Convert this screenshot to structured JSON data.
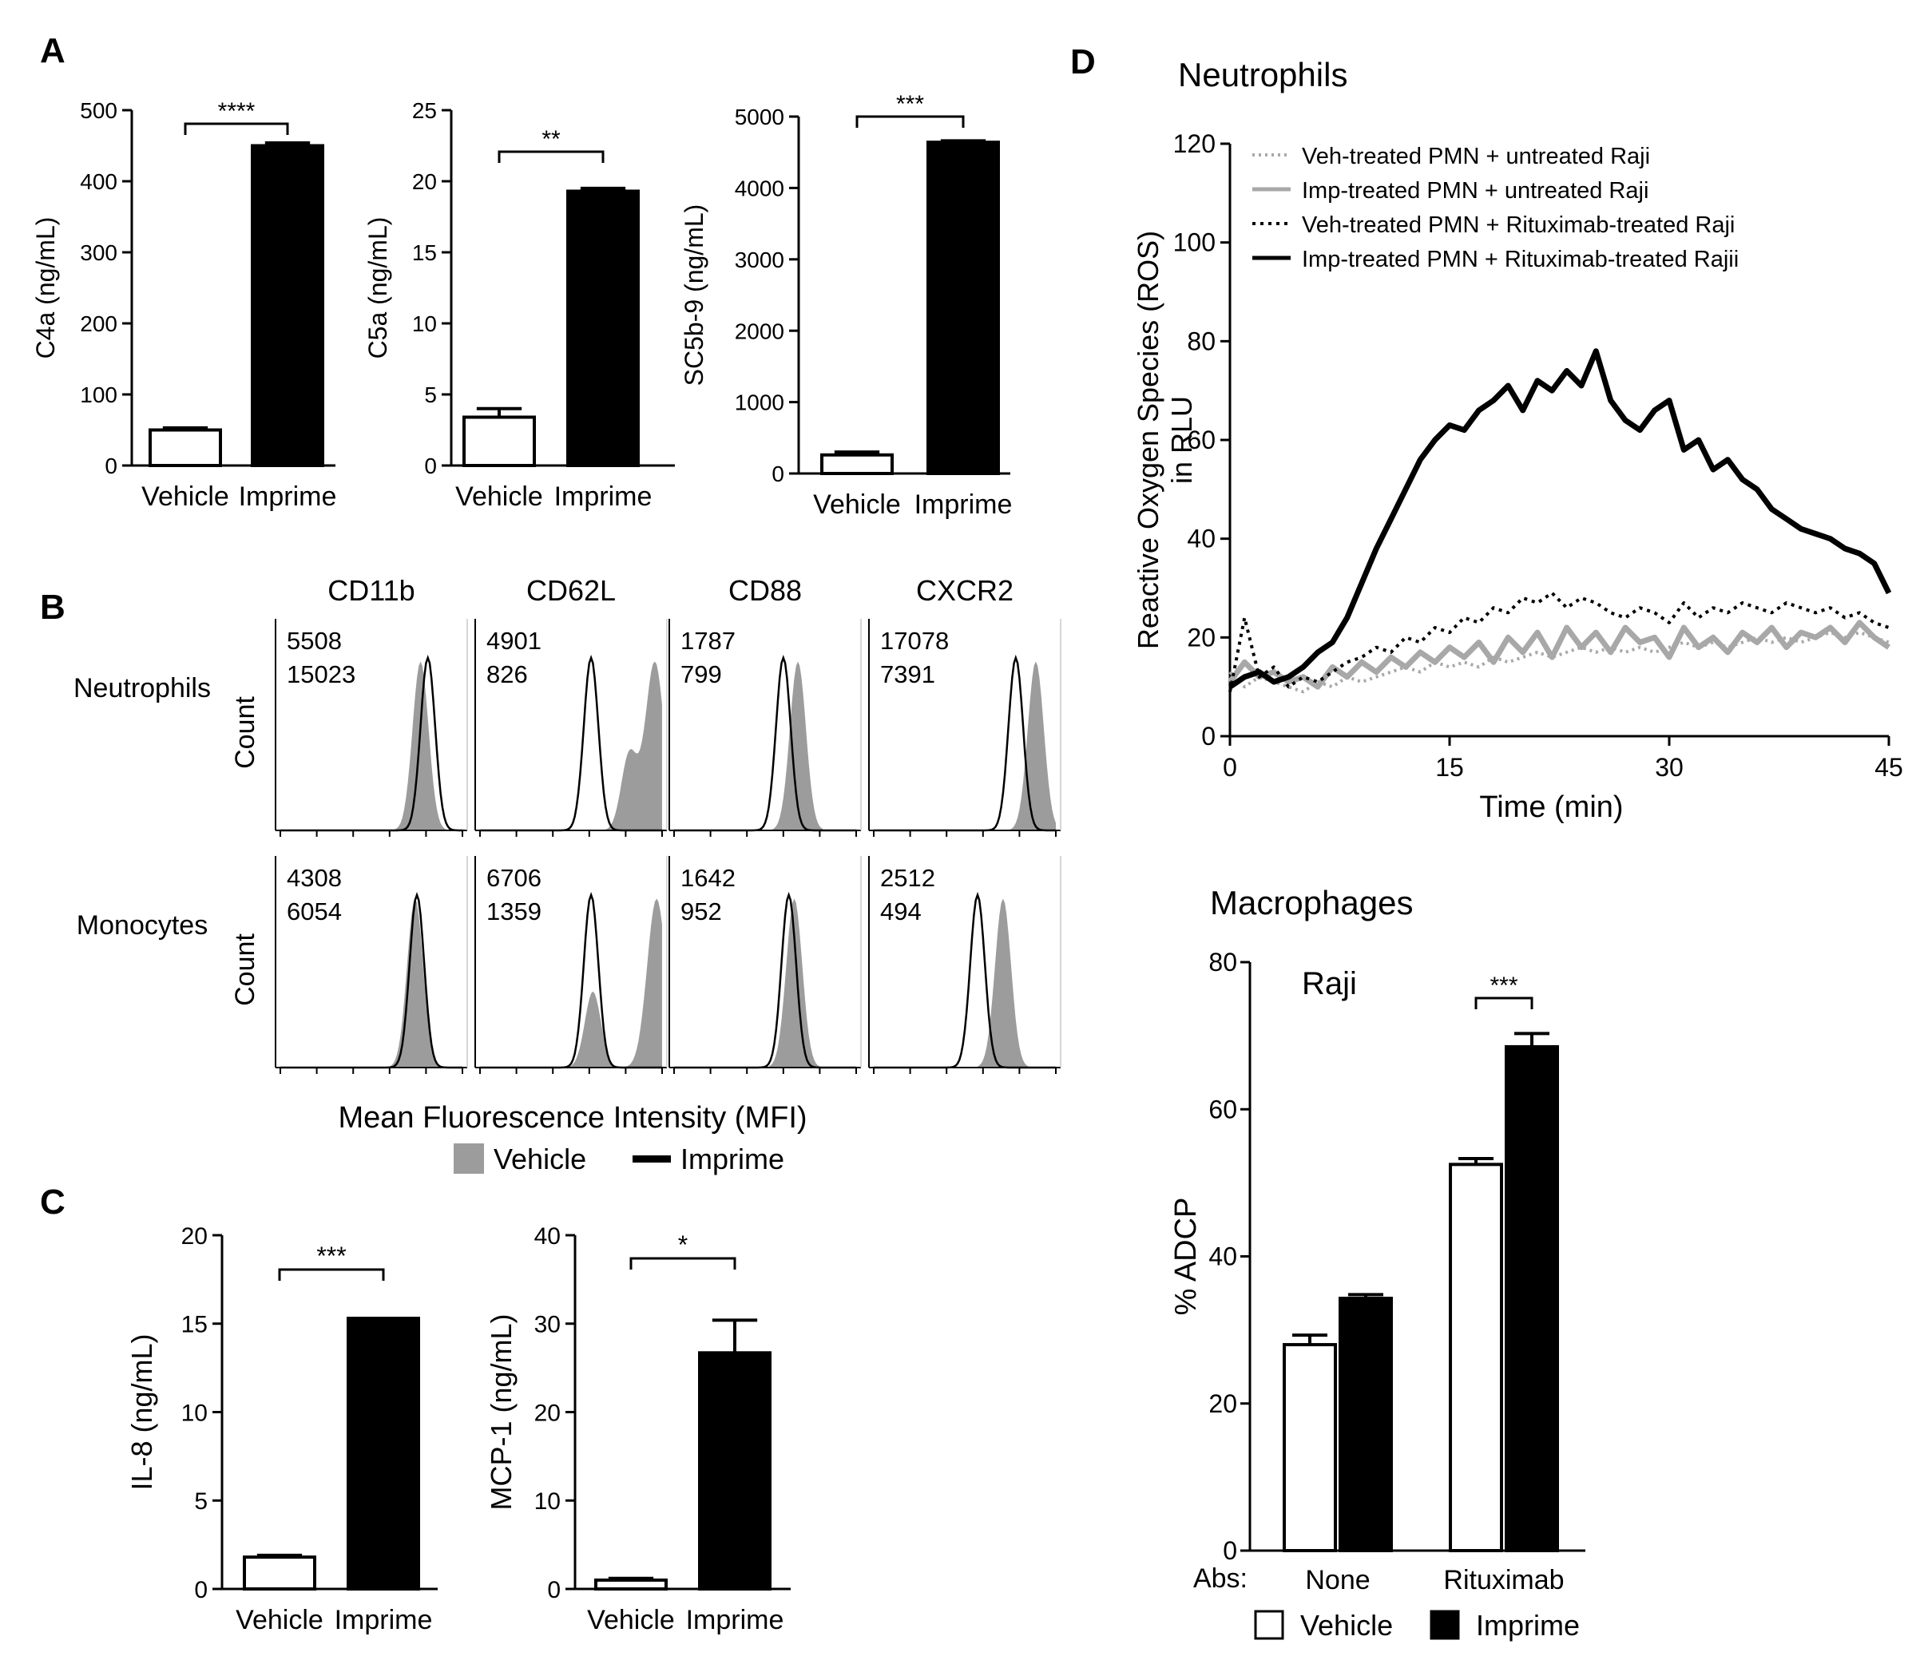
{
  "figure": {
    "panel_labels": {
      "A": "A",
      "B": "B",
      "C": "C",
      "D": "D"
    }
  },
  "colors": {
    "vehicle": "#ffffff",
    "imprime": "#000000",
    "vehicle_fill": "#9c9c9c",
    "vehicle_mfi_text": "#8c8c8c",
    "grey_line": "#a8a8a8"
  },
  "chart_data": [
    {
      "id": "c4a",
      "type": "bar",
      "panel": "A",
      "categories": [
        "Vehicle",
        "Imprime"
      ],
      "values": [
        50,
        450
      ],
      "errors": [
        3,
        4
      ],
      "ylabel": "C4a (ng/mL)",
      "ylim": [
        0,
        500
      ],
      "yticks": [
        0,
        100,
        200,
        300,
        400,
        500
      ],
      "significance": "****"
    },
    {
      "id": "c5a",
      "type": "bar",
      "panel": "A",
      "categories": [
        "Vehicle",
        "Imprime"
      ],
      "values": [
        3.4,
        19.3
      ],
      "errors": [
        0.6,
        0.2
      ],
      "ylabel": "C5a (ng/mL)",
      "ylim": [
        0,
        25
      ],
      "yticks": [
        0,
        5,
        10,
        15,
        20,
        25
      ],
      "significance": "**"
    },
    {
      "id": "sc5b9",
      "type": "bar",
      "panel": "A",
      "categories": [
        "Vehicle",
        "Imprime"
      ],
      "values": [
        260,
        4640
      ],
      "errors": [
        40,
        20
      ],
      "ylabel": "SC5b-9 (ng/mL)",
      "ylim": [
        0,
        5000
      ],
      "yticks": [
        0,
        1000,
        2000,
        3000,
        4000,
        5000
      ],
      "significance": "***"
    },
    {
      "id": "flow",
      "type": "histogram-grid",
      "panel": "B",
      "columns": [
        "CD11b",
        "CD62L",
        "CD88",
        "CXCR2"
      ],
      "rows": [
        "Neutrophils",
        "Monocytes"
      ],
      "ylabel": "Count",
      "xlabel": "Mean Fluorescence Intensity (MFI)",
      "legend": [
        "Vehicle",
        "Imprime"
      ],
      "mfi": [
        [
          {
            "vehicle": "5508",
            "imprime": "15023"
          },
          {
            "vehicle": "4901",
            "imprime": "826"
          },
          {
            "vehicle": "1787",
            "imprime": "799"
          },
          {
            "vehicle": "17078",
            "imprime": "7391"
          }
        ],
        [
          {
            "vehicle": "4308",
            "imprime": "6054"
          },
          {
            "vehicle": "6706",
            "imprime": "1359"
          },
          {
            "vehicle": "1642",
            "imprime": "952"
          },
          {
            "vehicle": "2512",
            "imprime": "494"
          }
        ]
      ],
      "peaks_log10": [
        [
          {
            "veh": [
              3.85
            ],
            "imp": 4.05
          },
          {
            "veh": [
              4.1,
              4.8
            ],
            "imp": 3.05
          },
          {
            "veh": [
              3.4
            ],
            "imp": 3.0
          },
          {
            "veh": [
              4.45
            ],
            "imp": 3.9
          }
        ],
        [
          {
            "veh": [
              3.7
            ],
            "imp": 3.75
          },
          {
            "veh": [
              3.1,
              4.85
            ],
            "imp": 3.05
          },
          {
            "veh": [
              3.3
            ],
            "imp": 3.15
          },
          {
            "veh": [
              3.55
            ],
            "imp": 2.85
          }
        ]
      ],
      "x_decades": [
        0,
        1,
        2,
        3,
        4,
        5
      ]
    },
    {
      "id": "il8",
      "type": "bar",
      "panel": "C",
      "categories": [
        "Vehicle",
        "Imprime"
      ],
      "values": [
        1.8,
        15.3
      ],
      "errors": [
        0.1,
        0.0
      ],
      "ylabel": "IL-8 (ng/mL)",
      "ylim": [
        0,
        20
      ],
      "yticks": [
        0,
        5,
        10,
        15,
        20
      ],
      "significance": "***"
    },
    {
      "id": "mcp1",
      "type": "bar",
      "panel": "C",
      "categories": [
        "Vehicle",
        "Imprime"
      ],
      "values": [
        1.0,
        26.7
      ],
      "errors": [
        0.2,
        3.7
      ],
      "ylabel": "MCP-1 (ng/mL)",
      "ylim": [
        0,
        40
      ],
      "yticks": [
        0,
        10,
        20,
        30,
        40
      ],
      "significance": "*"
    },
    {
      "id": "ros",
      "type": "line",
      "panel": "D",
      "title": "Neutrophils",
      "ylabel_line1": "Reactive Oxygen Species (ROS)",
      "ylabel_line2": "in RLU",
      "xlabel": "Time (min)",
      "xlim": [
        0,
        45
      ],
      "ylim": [
        0,
        120
      ],
      "xticks": [
        0,
        15,
        30,
        45
      ],
      "yticks": [
        0,
        20,
        40,
        60,
        80,
        100,
        120
      ],
      "series": [
        {
          "name": "Veh-treated PMN + untreated Raji",
          "style": "dotted-grey",
          "x": [
            0,
            1,
            2,
            3,
            4,
            5,
            6,
            7,
            8,
            9,
            10,
            11,
            12,
            13,
            14,
            15,
            16,
            17,
            18,
            19,
            20,
            21,
            22,
            23,
            24,
            25,
            26,
            27,
            28,
            29,
            30,
            31,
            32,
            33,
            34,
            35,
            36,
            37,
            38,
            39,
            40,
            41,
            42,
            43,
            44,
            45
          ],
          "y": [
            13,
            10,
            12,
            11,
            10,
            9,
            11,
            10,
            12,
            11,
            12,
            13,
            14,
            13,
            15,
            14,
            15,
            14,
            16,
            15,
            16,
            17,
            16,
            17,
            18,
            17,
            18,
            17,
            18,
            17,
            18,
            19,
            18,
            19,
            18,
            19,
            20,
            19,
            20,
            19,
            20,
            21,
            20,
            21,
            20,
            19
          ]
        },
        {
          "name": "Imp-treated PMN + untreated Raji",
          "style": "solid-grey",
          "x": [
            0,
            1,
            2,
            3,
            4,
            5,
            6,
            7,
            8,
            9,
            10,
            11,
            12,
            13,
            14,
            15,
            16,
            17,
            18,
            19,
            20,
            21,
            22,
            23,
            24,
            25,
            26,
            27,
            28,
            29,
            30,
            31,
            32,
            33,
            34,
            35,
            36,
            37,
            38,
            39,
            40,
            41,
            42,
            43,
            44,
            45
          ],
          "y": [
            11,
            15,
            12,
            13,
            11,
            12,
            10,
            14,
            12,
            15,
            13,
            16,
            14,
            17,
            15,
            18,
            16,
            19,
            15,
            20,
            17,
            21,
            16,
            22,
            18,
            21,
            17,
            22,
            19,
            20,
            16,
            22,
            18,
            20,
            17,
            21,
            19,
            22,
            18,
            21,
            20,
            22,
            19,
            23,
            20,
            18
          ]
        },
        {
          "name": "Veh-treated PMN + Rituximab-treated Raji",
          "style": "dashed-black",
          "x": [
            0,
            1,
            2,
            3,
            4,
            5,
            6,
            7,
            8,
            9,
            10,
            11,
            12,
            13,
            14,
            15,
            16,
            17,
            18,
            19,
            20,
            21,
            22,
            23,
            24,
            25,
            26,
            27,
            28,
            29,
            30,
            31,
            32,
            33,
            34,
            35,
            36,
            37,
            38,
            39,
            40,
            41,
            42,
            43,
            44,
            45
          ],
          "y": [
            9,
            24,
            12,
            14,
            10,
            12,
            11,
            13,
            15,
            16,
            18,
            17,
            20,
            19,
            22,
            21,
            24,
            23,
            26,
            25,
            28,
            27,
            29,
            26,
            28,
            27,
            25,
            24,
            26,
            25,
            23,
            27,
            24,
            26,
            25,
            27,
            26,
            25,
            27,
            26,
            25,
            26,
            24,
            25,
            23,
            22
          ]
        },
        {
          "name": "Imp-treated PMN + Rituximab-treated Rajii",
          "style": "solid-black",
          "x": [
            0,
            1,
            2,
            3,
            4,
            5,
            6,
            7,
            8,
            9,
            10,
            11,
            12,
            13,
            14,
            15,
            16,
            17,
            18,
            19,
            20,
            21,
            22,
            23,
            24,
            25,
            26,
            27,
            28,
            29,
            30,
            31,
            32,
            33,
            34,
            35,
            36,
            37,
            38,
            39,
            40,
            41,
            42,
            43,
            44,
            45
          ],
          "y": [
            10,
            12,
            13,
            11,
            12,
            14,
            17,
            19,
            24,
            31,
            38,
            44,
            50,
            56,
            60,
            63,
            62,
            66,
            68,
            71,
            66,
            72,
            70,
            74,
            71,
            78,
            68,
            64,
            62,
            66,
            68,
            58,
            60,
            54,
            56,
            52,
            50,
            46,
            44,
            42,
            41,
            40,
            38,
            37,
            35,
            29
          ]
        }
      ]
    },
    {
      "id": "adcp",
      "type": "bar",
      "panel": "D",
      "title": "Macrophages",
      "subtitle": "Raji",
      "ylabel": "% ADCP",
      "abs_label": "Abs:",
      "categories": [
        "None",
        "Rituximab"
      ],
      "series": [
        {
          "name": "Vehicle",
          "values": [
            28,
            52.5
          ],
          "errors": [
            1.3,
            0.8
          ]
        },
        {
          "name": "Imprime",
          "values": [
            34.3,
            68.5
          ],
          "errors": [
            0.5,
            1.8
          ]
        }
      ],
      "ylim": [
        0,
        80
      ],
      "yticks": [
        0,
        20,
        40,
        60,
        80
      ],
      "significance": "***"
    }
  ]
}
